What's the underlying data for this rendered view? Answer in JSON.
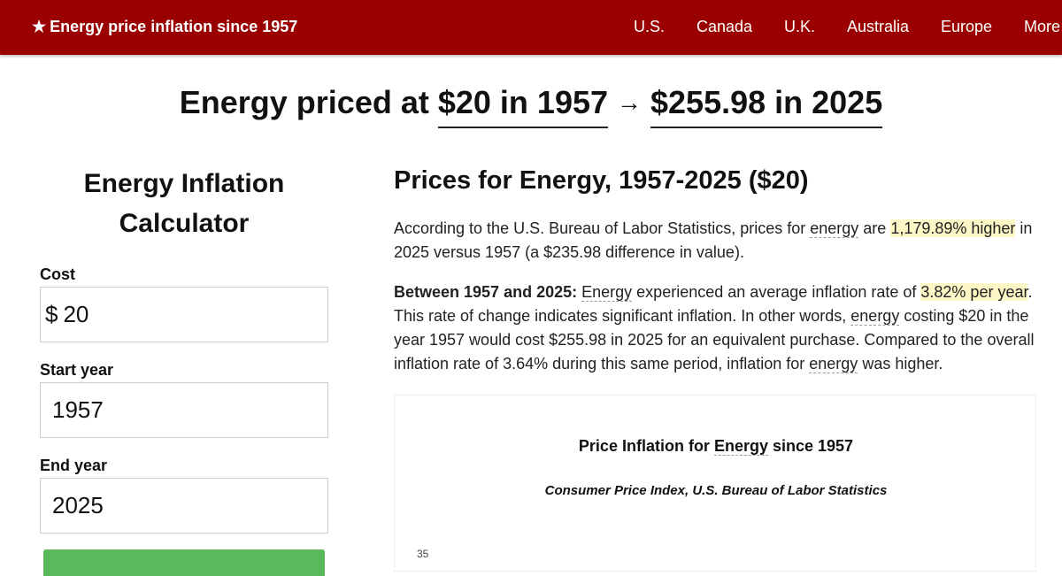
{
  "topbar": {
    "brand": "Energy price inflation since 1957",
    "brand_icon": "star-icon",
    "nav": [
      "U.S.",
      "Canada",
      "U.K.",
      "Australia",
      "Europe",
      "More"
    ]
  },
  "headline": {
    "prefix": "Energy priced at",
    "from": "$20 in 1957",
    "arrow": "→",
    "to": "$255.98 in 2025"
  },
  "calculator": {
    "title": "Energy Inflation Calculator",
    "cost_label": "Cost",
    "cost_prefix": "$",
    "cost_value": "20",
    "start_label": "Start year",
    "start_value": "1957",
    "end_label": "End year",
    "end_value": "2025",
    "button_color": "#5cb85c"
  },
  "article": {
    "title": "Prices for Energy, 1957-2025 ($20)",
    "p1": {
      "a": "According to the U.S. Bureau of Labor Statistics, prices for ",
      "term": "energy",
      "b": " are ",
      "highlight": "1,179.89% higher",
      "c": " in 2025 versus 1957 (a $235.98 difference in value)."
    },
    "p2": {
      "lead": "Between 1957 and 2025:",
      "term1": "Energy",
      "a": " experienced an average inflation rate of ",
      "highlight": "3.82% per year",
      "b": ". This rate of change indicates significant inflation. In other words, ",
      "term2": "energy",
      "c": " costing $20 in the year 1957 would cost $255.98 in 2025 for an equivalent purchase. Compared to the overall inflation rate of 3.64% during this same period, inflation for ",
      "term3": "energy",
      "d": " was higher."
    }
  },
  "chart": {
    "title_a": "Price Inflation for ",
    "title_term": "Energy",
    "title_b": " since 1957",
    "subtitle": "Consumer Price Index, U.S. Bureau of Labor Statistics",
    "visible_tick": "35"
  },
  "colors": {
    "topbar": "#9b0000",
    "highlight": "#fcf7c5",
    "button": "#5cb85c"
  }
}
